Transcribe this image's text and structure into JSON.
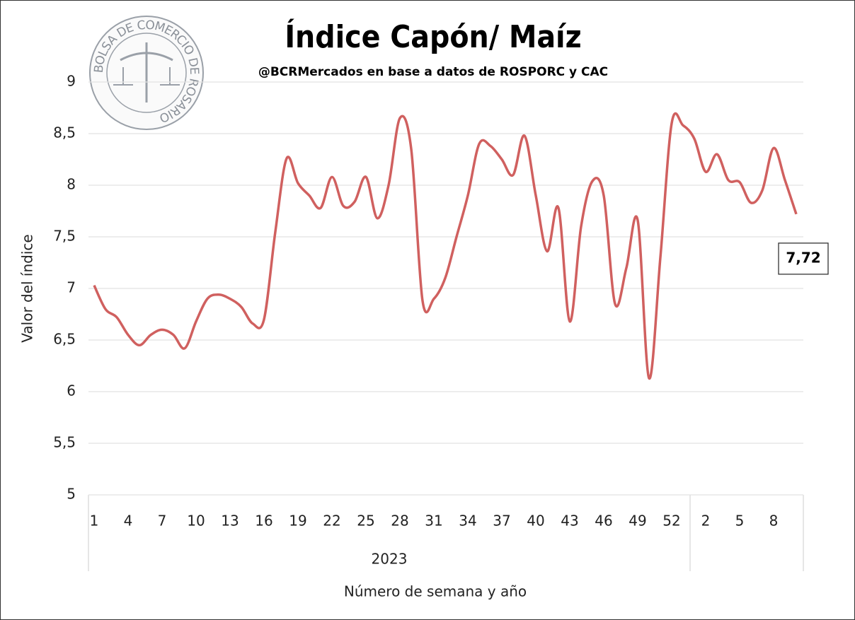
{
  "chart_data": {
    "type": "line",
    "title": "Índice Capón/ Maíz",
    "subtitle": "@BCRMercados  en base a datos de ROSPORC y CAC",
    "logo_text": "BOLSA DE COMERCIO DE ROSARIO",
    "y_label": "Valor del índice",
    "x_label": "Número de semana y año",
    "category_group": "2023",
    "categories": [
      "1",
      null,
      null,
      "4",
      null,
      null,
      "7",
      null,
      null,
      "10",
      null,
      null,
      "13",
      null,
      null,
      "16",
      null,
      null,
      "19",
      null,
      null,
      "22",
      null,
      null,
      "25",
      null,
      null,
      "28",
      null,
      null,
      "31",
      null,
      null,
      "34",
      null,
      null,
      "37",
      null,
      null,
      "40",
      null,
      null,
      "43",
      null,
      null,
      "46",
      null,
      null,
      "49",
      null,
      null,
      "52",
      null,
      null,
      "2",
      null,
      null,
      "5",
      null,
      null,
      "8",
      null,
      null
    ],
    "series": [
      {
        "name": "Índice Capón/ Maíz",
        "color": "#d0605f",
        "values": [
          7.03,
          6.8,
          6.72,
          6.55,
          6.45,
          6.55,
          6.6,
          6.55,
          6.42,
          6.68,
          6.9,
          6.94,
          6.9,
          6.82,
          6.66,
          6.7,
          7.55,
          8.26,
          8.02,
          7.9,
          7.78,
          8.08,
          7.8,
          7.84,
          8.08,
          7.68,
          8.0,
          8.65,
          8.35,
          6.88,
          6.9,
          7.1,
          7.5,
          7.9,
          8.4,
          8.38,
          8.25,
          8.1,
          8.48,
          7.9,
          7.36,
          7.78,
          6.68,
          7.6,
          8.04,
          7.9,
          6.85,
          7.2,
          7.66,
          6.13,
          7.3,
          8.6,
          8.58,
          8.45,
          8.13,
          8.3,
          8.05,
          8.03,
          7.83,
          7.95,
          8.36,
          8.05,
          7.72
        ],
        "value_labels": [
          null,
          null,
          null,
          null,
          null,
          null,
          null,
          null,
          null,
          null,
          null,
          null,
          null,
          null,
          null,
          null,
          null,
          null,
          null,
          null,
          null,
          null,
          null,
          null,
          null,
          null,
          null,
          null,
          null,
          null,
          null,
          null,
          null,
          null,
          null,
          null,
          null,
          null,
          null,
          null,
          null,
          null,
          null,
          null,
          null,
          null,
          null,
          null,
          null,
          null,
          null,
          null,
          null,
          null,
          null,
          null,
          null,
          null,
          null,
          null,
          null,
          null,
          "7,72"
        ]
      }
    ],
    "ylim": [
      5,
      9
    ],
    "yticks": [
      5,
      {
        "value": 5.5,
        "label": "5,5"
      },
      6,
      {
        "value": 6.5,
        "label": "6,5"
      },
      7,
      {
        "value": 7.5,
        "label": "7,5"
      },
      8,
      {
        "value": 8.5,
        "label": "8,5"
      },
      9
    ],
    "grid": true
  }
}
